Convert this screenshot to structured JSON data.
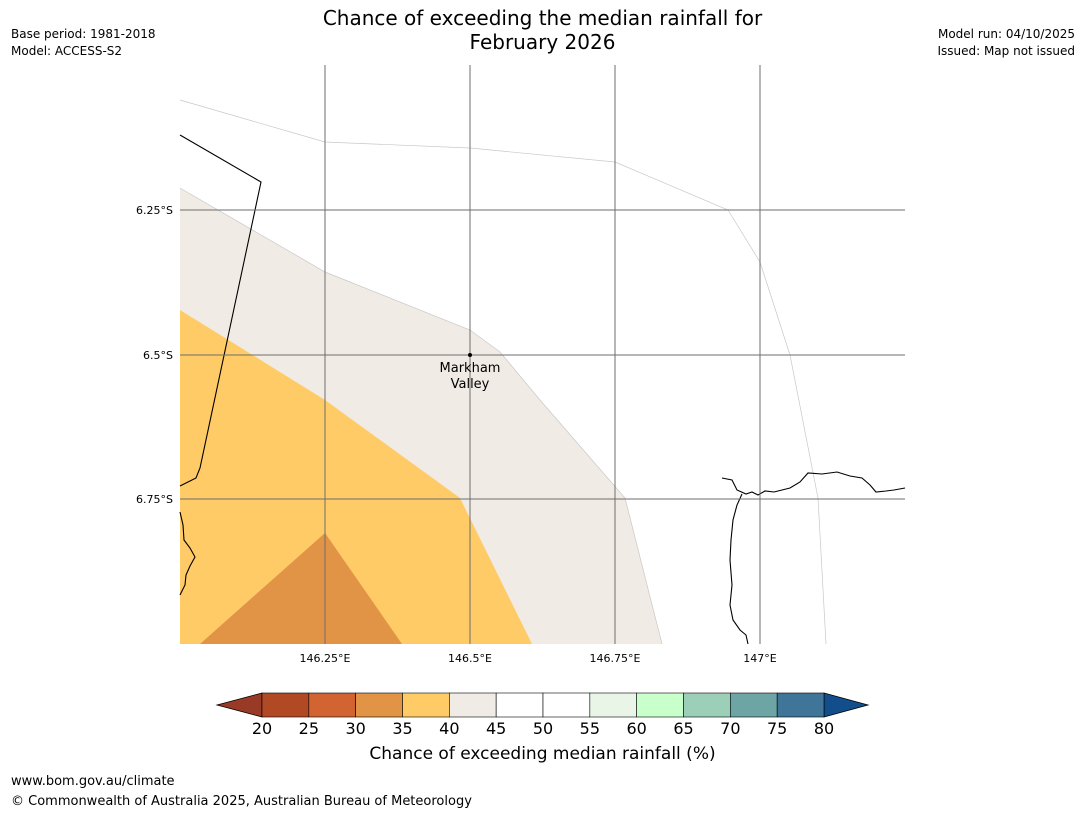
{
  "header": {
    "title_line1": "Chance of exceeding the median rainfall for",
    "title_line2": "February 2026",
    "base_period": "Base period: 1981-2018",
    "model": "Model: ACCESS-S2",
    "model_run": "Model run: 04/10/2025",
    "issued": "Issued: Map not issued"
  },
  "map": {
    "lat_labels": [
      "6.25°S",
      "6.5°S",
      "6.75°S"
    ],
    "lon_labels": [
      "146.25°E",
      "146.5°E",
      "146.75°E",
      "147°E"
    ],
    "place": {
      "name_line1": "Markham",
      "name_line2": "Valley",
      "lon": 146.5,
      "lat": -6.5
    },
    "zones": [
      {
        "name": "40-45",
        "color": "#f0ebe5"
      },
      {
        "name": "35-40",
        "color": "#ffcb66"
      },
      {
        "name": "30-35",
        "color": "#e19346"
      }
    ]
  },
  "colorbar": {
    "ticks": [
      "20",
      "25",
      "30",
      "35",
      "40",
      "45",
      "50",
      "55",
      "60",
      "65",
      "70",
      "75",
      "80"
    ],
    "low_extend_color": "#983a26",
    "high_extend_color": "#134e8c",
    "colors": [
      "#b14925",
      "#d16430",
      "#e19346",
      "#ffcb66",
      "#f0ebe5",
      "#ffffff",
      "#ffffff",
      "#e8f5e7",
      "#c8ffca",
      "#9ccfb7",
      "#6da4a4",
      "#3e7598"
    ],
    "label": "Chance of exceeding median rainfall (%)"
  },
  "footer": {
    "url": "www.bom.gov.au/climate",
    "copyright": "© Commonwealth of Australia 2025, Australian Bureau of Meteorology"
  }
}
